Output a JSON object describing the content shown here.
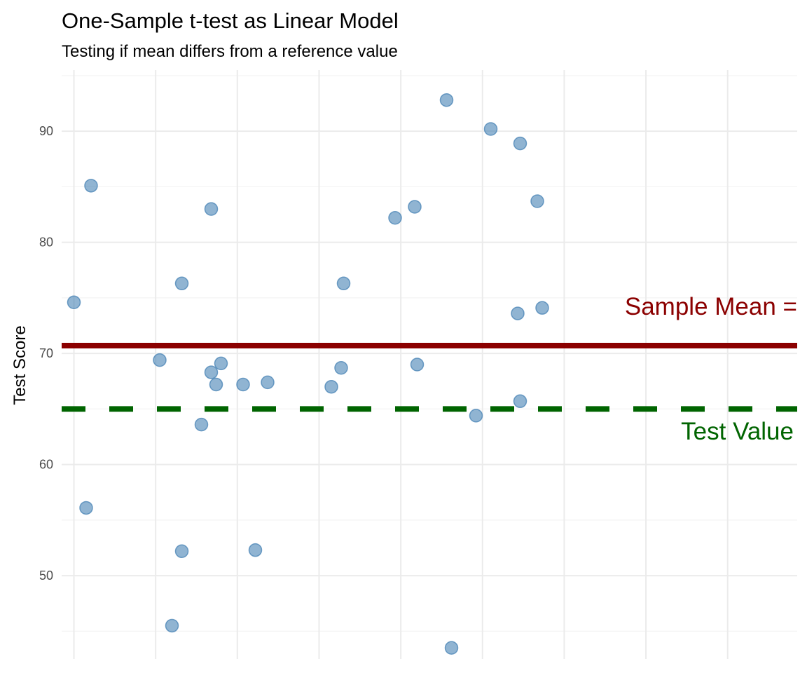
{
  "chart_data": {
    "type": "scatter",
    "title": "One-Sample t-test as Linear Model",
    "subtitle": "Testing if mean differs from a reference value",
    "xlabel": "",
    "ylabel": "Test Score",
    "xlim": [
      0.5,
      30.5
    ],
    "ylim": [
      42.5,
      95.5
    ],
    "yticks": [
      50,
      60,
      70,
      80,
      90
    ],
    "grid": true,
    "point_color": "#4682B4",
    "points": [
      {
        "x": 1.0,
        "y": 74.6
      },
      {
        "x": 1.5,
        "y": 56.1
      },
      {
        "x": 1.7,
        "y": 85.1
      },
      {
        "x": 4.5,
        "y": 69.4
      },
      {
        "x": 5.0,
        "y": 45.5
      },
      {
        "x": 5.4,
        "y": 76.3
      },
      {
        "x": 5.4,
        "y": 52.2
      },
      {
        "x": 6.2,
        "y": 63.6
      },
      {
        "x": 6.6,
        "y": 68.3
      },
      {
        "x": 6.6,
        "y": 83.0
      },
      {
        "x": 6.8,
        "y": 67.2
      },
      {
        "x": 7.0,
        "y": 69.1
      },
      {
        "x": 7.9,
        "y": 67.2
      },
      {
        "x": 8.4,
        "y": 52.3
      },
      {
        "x": 8.9,
        "y": 67.4
      },
      {
        "x": 11.5,
        "y": 67.0
      },
      {
        "x": 11.9,
        "y": 68.7
      },
      {
        "x": 12.0,
        "y": 76.3
      },
      {
        "x": 14.1,
        "y": 82.2
      },
      {
        "x": 14.9,
        "y": 83.2
      },
      {
        "x": 15.0,
        "y": 69.0
      },
      {
        "x": 16.2,
        "y": 92.8
      },
      {
        "x": 16.4,
        "y": 43.5
      },
      {
        "x": 17.4,
        "y": 64.4
      },
      {
        "x": 18.0,
        "y": 90.2
      },
      {
        "x": 19.1,
        "y": 73.6
      },
      {
        "x": 19.2,
        "y": 65.7
      },
      {
        "x": 19.2,
        "y": 88.9
      },
      {
        "x": 19.9,
        "y": 83.7
      },
      {
        "x": 20.1,
        "y": 74.1
      }
    ],
    "sample_mean": {
      "value": 70.7,
      "color": "#8B0000",
      "label": "Sample Mean ="
    },
    "test_value": {
      "value": 65.0,
      "color": "#006400",
      "label": "Test Value"
    }
  }
}
